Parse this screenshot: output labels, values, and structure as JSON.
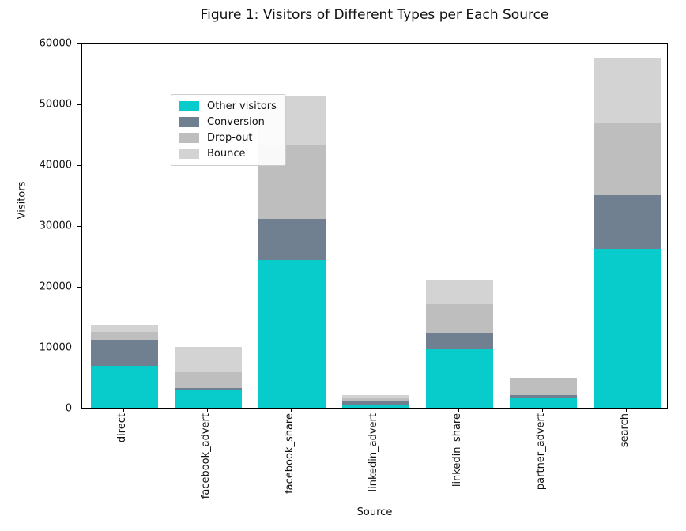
{
  "title": "Figure 1: Visitors of Different Types per Each Source",
  "chart_data": {
    "type": "bar",
    "stacked": true,
    "title": "Figure 1: Visitors of Different Types per Each Source",
    "xlabel": "Source",
    "ylabel": "Visitors",
    "ylim": [
      0,
      60000
    ],
    "yticks": [
      0,
      10000,
      20000,
      30000,
      40000,
      50000,
      60000
    ],
    "grid": false,
    "legend_position": "upper left",
    "categories": [
      "direct",
      "facebook_advert",
      "facebook_share",
      "linkedin_advert",
      "linkedin_share",
      "partner_advert",
      "search"
    ],
    "series": [
      {
        "name": "Other visitors",
        "color": "#08cccb",
        "values": [
          6900,
          2900,
          24300,
          500,
          9600,
          1500,
          26100
        ]
      },
      {
        "name": "Conversion",
        "color": "#708090",
        "values": [
          4300,
          300,
          6700,
          500,
          2600,
          550,
          8800
        ]
      },
      {
        "name": "Drop-out",
        "color": "#bebebe",
        "values": [
          1300,
          2600,
          12100,
          600,
          4800,
          2750,
          11800
        ]
      },
      {
        "name": "Bounce",
        "color": "#d3d3d3",
        "values": [
          1100,
          4200,
          8200,
          500,
          4100,
          200,
          10800
        ]
      }
    ],
    "totals": [
      13600,
      10000,
      51300,
      2100,
      21100,
      5000,
      57500
    ]
  },
  "axis_color": "#000000",
  "background_color": "#ffffff"
}
